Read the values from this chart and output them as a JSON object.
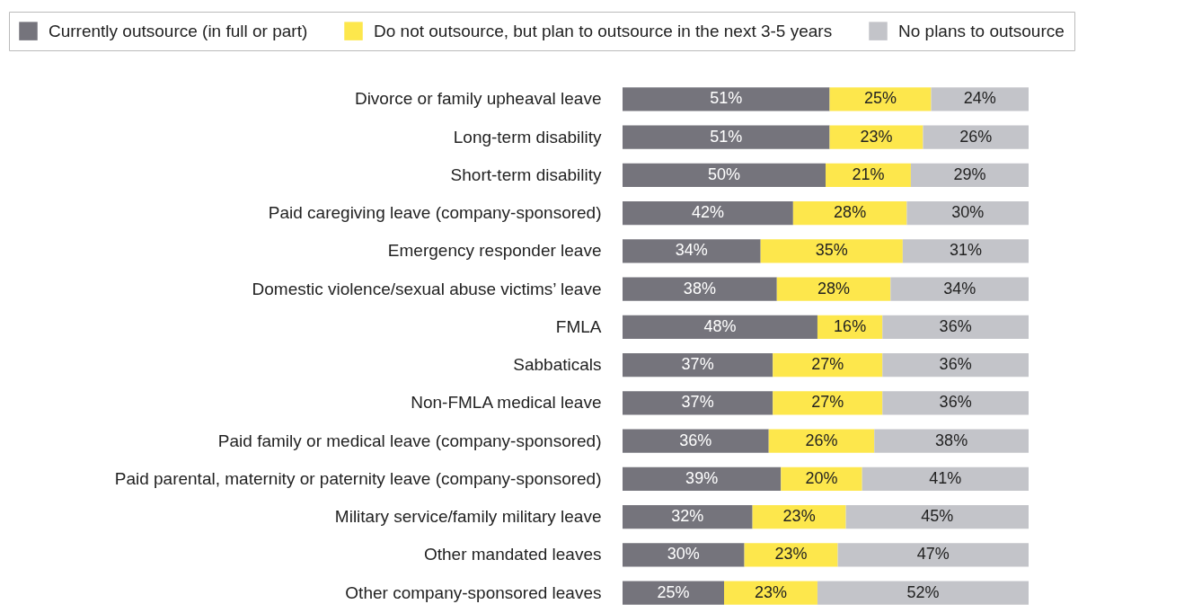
{
  "chart_data": {
    "type": "bar",
    "orientation": "horizontal",
    "stacked": true,
    "legend": "top",
    "tick_labels": "y",
    "categories": [
      "Divorce or family upheaval leave",
      "Long-term disability",
      "Short-term disability",
      "Paid caregiving leave (company-sponsored)",
      "Emergency responder leave",
      "Domestic violence/sexual abuse victims’ leave",
      "FMLA",
      "Sabbaticals",
      "Non-FMLA medical leave",
      "Paid family or medical leave (company-sponsored)",
      "Paid parental, maternity or paternity leave (company-sponsored)",
      "Military service/family military leave",
      "Other mandated leaves",
      "Other company-sponsored leaves"
    ],
    "series": [
      {
        "name": "Currently outsource (in full or part)",
        "color": "#75747c",
        "values": [
          51,
          51,
          50,
          42,
          34,
          38,
          48,
          37,
          37,
          36,
          39,
          32,
          30,
          25
        ],
        "value_labels": [
          "51%",
          "51%",
          "50%",
          "42%",
          "34%",
          "38%",
          "48%",
          "37%",
          "37%",
          "36%",
          "39%",
          "32%",
          "30%",
          "25%"
        ]
      },
      {
        "name": "Do not outsource, but plan to outsource in the next 3-5 years",
        "color": "#fde74c",
        "values": [
          25,
          23,
          21,
          28,
          35,
          28,
          16,
          27,
          27,
          26,
          20,
          23,
          23,
          23
        ],
        "value_labels": [
          "25%",
          "23%",
          "21%",
          "28%",
          "35%",
          "28%",
          "16%",
          "27%",
          "27%",
          "26%",
          "20%",
          "23%",
          "23%",
          "23%"
        ]
      },
      {
        "name": "No plans to outsource",
        "color": "#c3c4c9",
        "values": [
          24,
          26,
          29,
          30,
          31,
          34,
          36,
          36,
          36,
          38,
          41,
          45,
          47,
          52
        ],
        "value_labels": [
          "24%",
          "26%",
          "29%",
          "30%",
          "31%",
          "34%",
          "36%",
          "36%",
          "36%",
          "38%",
          "41%",
          "45%",
          "47%",
          "52%"
        ]
      }
    ]
  }
}
